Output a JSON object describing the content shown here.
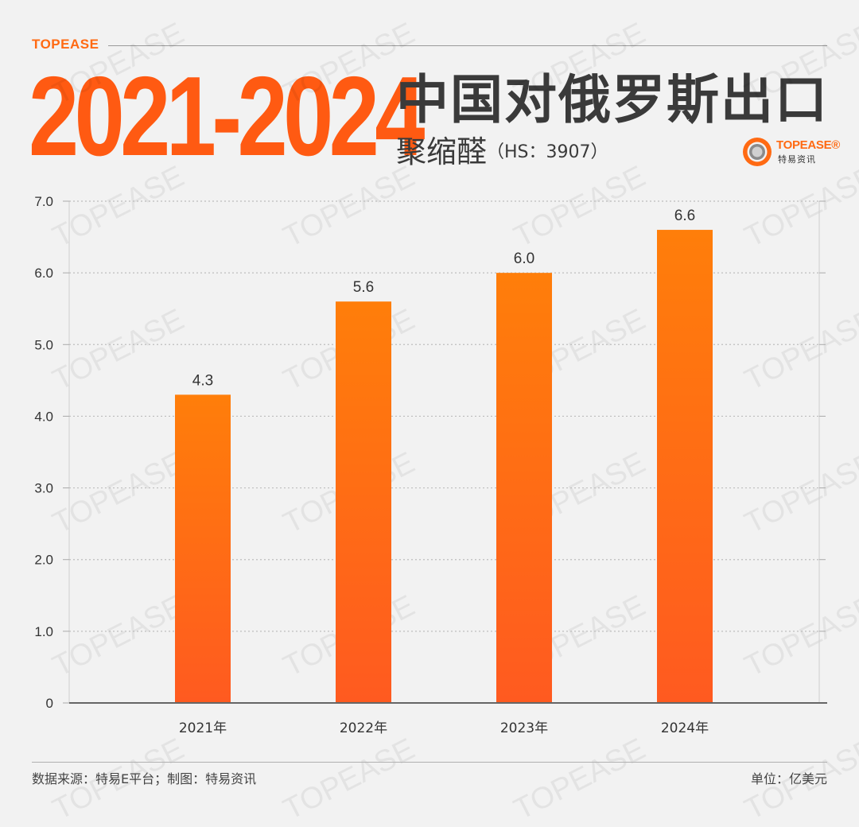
{
  "header": {
    "brand_tag": "TOPEASE",
    "years": "2021-2024",
    "title": "中国对俄罗斯出口",
    "subtitle": "聚缩醛",
    "hs_code": "（HS：3907）"
  },
  "logo": {
    "name": "TOPEASE®",
    "sub": "特易资讯",
    "icon": "topease-ring-icon"
  },
  "watermark": "TOPEASE",
  "colors": {
    "accent": "#ff6a13",
    "bar_top": "#ff7e0a",
    "bar_bottom": "#ff5a20",
    "title_dark": "#3a3a3a"
  },
  "chart_data": {
    "type": "bar",
    "categories": [
      "2021年",
      "2022年",
      "2023年",
      "2024年"
    ],
    "values": [
      4.3,
      5.6,
      6.0,
      6.6
    ],
    "value_labels": [
      "4.3",
      "5.6",
      "6.0",
      "6.6"
    ],
    "y_ticks": [
      "0",
      "1.0",
      "2.0",
      "3.0",
      "4.0",
      "5.0",
      "6.0",
      "7.0"
    ],
    "ylim": [
      0,
      7
    ],
    "grid": true,
    "grid_style": "dotted horizontal",
    "legend": "none"
  },
  "footer": {
    "source": "数据来源：特易E平台；制图：特易资讯",
    "unit": "单位：亿美元"
  }
}
